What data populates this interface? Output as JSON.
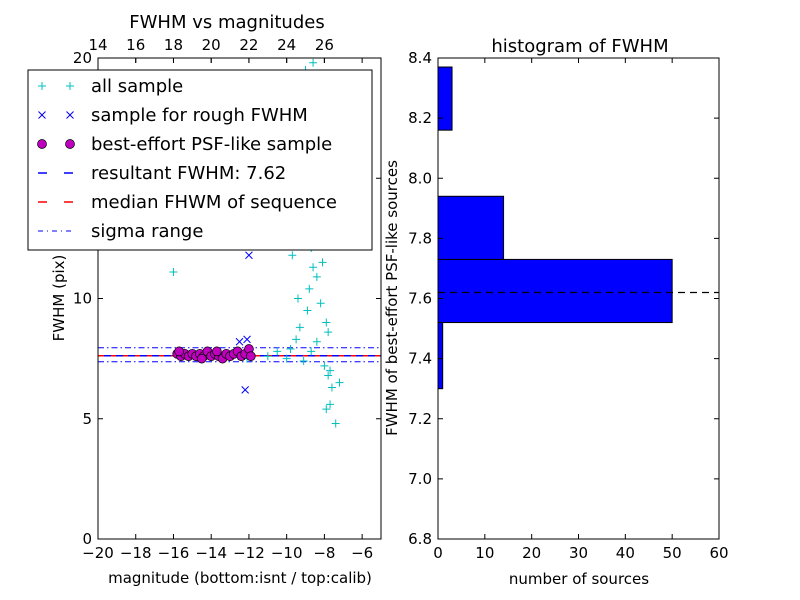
{
  "chart_data": [
    {
      "type": "scatter",
      "title": "FWHM vs magnitudes",
      "xlabel": "magnitude (bottom:isnt / top:calib)",
      "ylabel": "FWHM (pix)",
      "xlim": [
        -20,
        -5
      ],
      "ylim": [
        0,
        20
      ],
      "x_ticks": [
        -20,
        -18,
        -16,
        -14,
        -12,
        -10,
        -8,
        -6
      ],
      "x_tick_labels": [
        "−20",
        "−18",
        "−16",
        "−14",
        "−12",
        "−10",
        "−8",
        "−6"
      ],
      "y_ticks": [
        0,
        5,
        10,
        15,
        20
      ],
      "y_tick_labels": [
        "0",
        "5",
        "10",
        "15",
        "20"
      ],
      "top_axis": {
        "ticks": [
          14,
          16,
          18,
          20,
          22,
          24,
          26
        ],
        "tick_labels": [
          "14",
          "16",
          "18",
          "20",
          "22",
          "24",
          "26"
        ],
        "offset_from_bottom_axis": 34
      },
      "legend": {
        "placement": "upper-left",
        "entries": [
          {
            "label": "all sample",
            "marker": "+",
            "color": "#00bfbf"
          },
          {
            "label": "sample for rough FWHM",
            "marker": "x",
            "color": "#0000ff"
          },
          {
            "label": "best-effort PSF-like sample",
            "marker": "o",
            "color": "#bf00bf"
          },
          {
            "label": "resultant FWHM: 7.62",
            "marker": "dashed",
            "color": "#0000ff"
          },
          {
            "label": "median FHWM of sequence",
            "marker": "dashed",
            "color": "#ff0000"
          },
          {
            "label": "sigma range",
            "marker": "dashdot",
            "color": "#0000ff"
          }
        ]
      },
      "resultant_fwhm": 7.62,
      "median_fwhm": 7.62,
      "sigma_range": [
        7.37,
        7.95
      ],
      "series": [
        {
          "name": "all sample",
          "points": [
            [
              -16.0,
              11.1
            ],
            [
              -12.1,
              7.5
            ],
            [
              -11.0,
              7.6
            ],
            [
              -10.5,
              7.8
            ],
            [
              -10.0,
              7.5
            ],
            [
              -9.8,
              7.9
            ],
            [
              -9.5,
              8.3
            ],
            [
              -9.3,
              8.8
            ],
            [
              -9.1,
              7.4
            ],
            [
              -8.9,
              9.5
            ],
            [
              -8.8,
              10.4
            ],
            [
              -8.7,
              12.1
            ],
            [
              -8.6,
              11.3
            ],
            [
              -8.5,
              13.0
            ],
            [
              -8.4,
              8.2
            ],
            [
              -8.3,
              14.2
            ],
            [
              -8.2,
              15.0
            ],
            [
              -8.1,
              12.6
            ],
            [
              -8.0,
              17.8
            ],
            [
              -7.9,
              9.0
            ],
            [
              -7.8,
              6.8
            ],
            [
              -7.7,
              5.6
            ],
            [
              -7.6,
              6.3
            ],
            [
              -7.4,
              4.8
            ],
            [
              -7.2,
              6.5
            ],
            [
              -9.0,
              19.5
            ],
            [
              -8.6,
              19.8
            ],
            [
              -8.3,
              18.6
            ],
            [
              -9.7,
              11.8
            ],
            [
              -9.4,
              10.0
            ],
            [
              -8.9,
              13.5
            ],
            [
              -8.5,
              15.8
            ],
            [
              -8.2,
              9.8
            ],
            [
              -8.0,
              7.2
            ],
            [
              -7.9,
              5.4
            ],
            [
              -7.8,
              8.6
            ],
            [
              -8.7,
              7.8
            ],
            [
              -8.4,
              10.9
            ],
            [
              -8.1,
              11.5
            ],
            [
              -7.7,
              7.0
            ]
          ]
        },
        {
          "name": "sample for rough FWHM",
          "points": [
            [
              -12.2,
              6.2
            ],
            [
              -12.0,
              11.8
            ],
            [
              -12.5,
              8.2
            ],
            [
              -12.1,
              8.3
            ],
            [
              -12.4,
              7.6
            ],
            [
              -13.0,
              7.7
            ]
          ]
        },
        {
          "name": "best-effort PSF-like sample",
          "points": [
            [
              -15.8,
              7.7
            ],
            [
              -15.6,
              7.6
            ],
            [
              -15.4,
              7.7
            ],
            [
              -15.2,
              7.6
            ],
            [
              -15.0,
              7.7
            ],
            [
              -14.8,
              7.6
            ],
            [
              -14.6,
              7.7
            ],
            [
              -14.4,
              7.6
            ],
            [
              -14.2,
              7.8
            ],
            [
              -14.0,
              7.6
            ],
            [
              -13.8,
              7.7
            ],
            [
              -13.6,
              7.6
            ],
            [
              -13.4,
              7.5
            ],
            [
              -13.2,
              7.7
            ],
            [
              -13.0,
              7.6
            ],
            [
              -12.8,
              7.7
            ],
            [
              -12.6,
              7.8
            ],
            [
              -12.4,
              7.6
            ],
            [
              -12.2,
              7.7
            ],
            [
              -12.0,
              7.9
            ],
            [
              -11.9,
              7.6
            ],
            [
              -15.7,
              7.8
            ],
            [
              -14.5,
              7.5
            ],
            [
              -13.7,
              7.8
            ]
          ]
        }
      ]
    },
    {
      "type": "bar",
      "orientation": "horizontal",
      "title": "histogram of FWHM",
      "xlabel": "number of sources",
      "ylabel": "FWHM of best-effort PSF-like sources",
      "xlim": [
        0,
        60
      ],
      "ylim": [
        6.8,
        8.4
      ],
      "x_ticks": [
        0,
        10,
        20,
        30,
        40,
        50,
        60
      ],
      "x_tick_labels": [
        "0",
        "10",
        "20",
        "30",
        "40",
        "50",
        "60"
      ],
      "y_ticks": [
        6.8,
        7.0,
        7.2,
        7.4,
        7.6,
        7.8,
        8.0,
        8.2,
        8.4
      ],
      "y_tick_labels": [
        "6.8",
        "7.0",
        "7.2",
        "7.4",
        "7.6",
        "7.8",
        "8.0",
        "8.2",
        "8.4"
      ],
      "bar_color": "#0000ff",
      "bins": [
        {
          "low": 7.3,
          "high": 7.52,
          "count": 1
        },
        {
          "low": 7.52,
          "high": 7.73,
          "count": 50
        },
        {
          "low": 7.73,
          "high": 7.94,
          "count": 14
        },
        {
          "low": 7.94,
          "high": 8.16,
          "count": 0
        },
        {
          "low": 8.16,
          "high": 8.37,
          "count": 3
        }
      ],
      "reference_line": 7.62
    }
  ]
}
